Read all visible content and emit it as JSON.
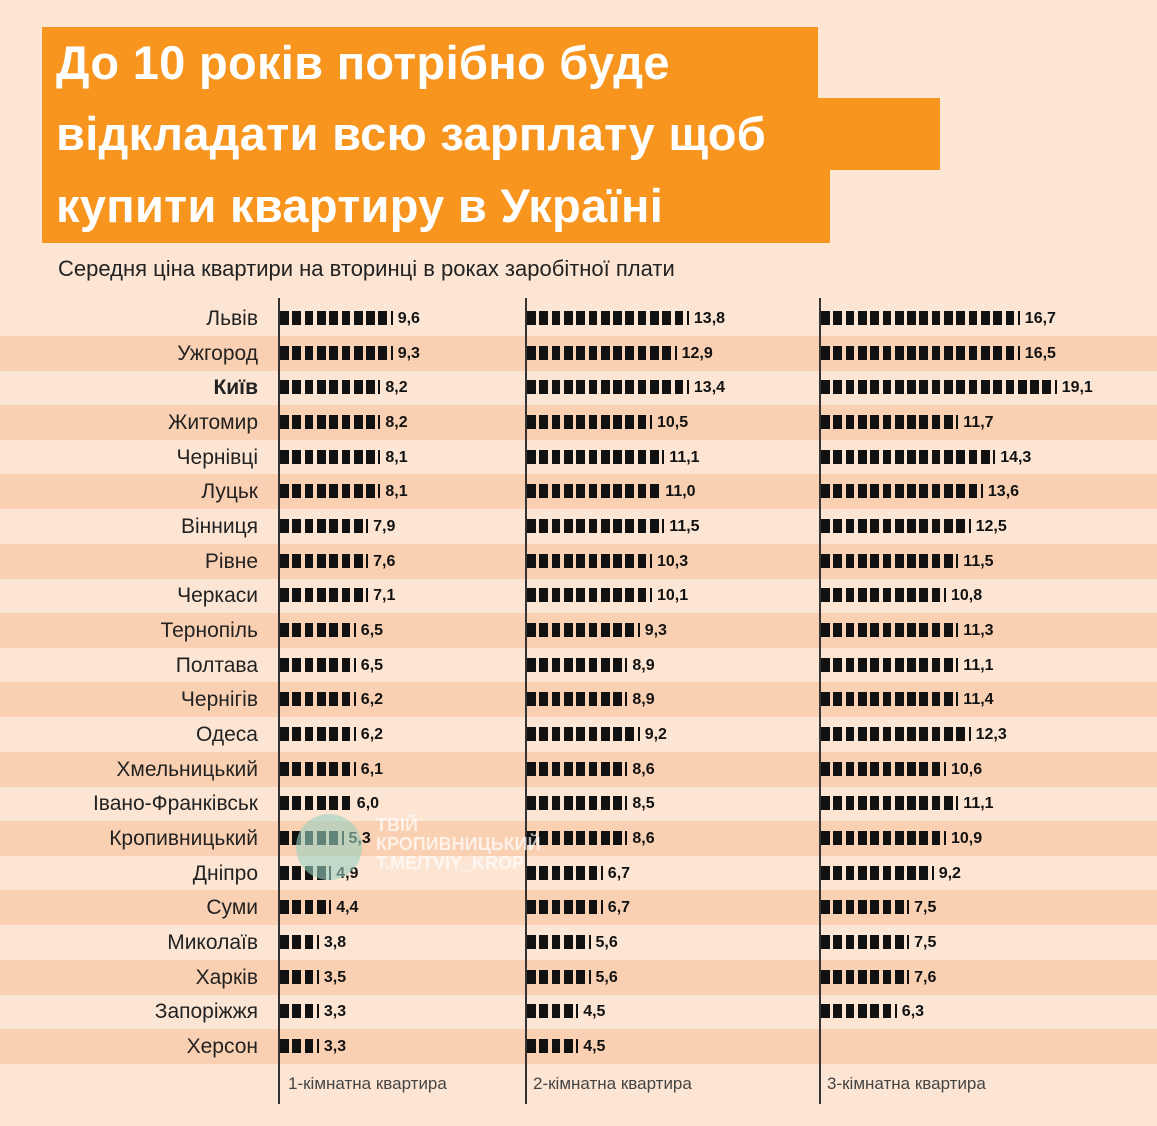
{
  "title_lines": [
    "До 10 років потрібно буде",
    "відкладати всю зарплату щоб",
    "купити квартиру в Україні"
  ],
  "subtitle": "Середня ціна квартири на вторинці в роках заробітної плати",
  "watermark": {
    "lines": [
      "ТВІЙ",
      "КРОПИВНИЦЬКИЙ",
      "T.ME/TVIY_KROP"
    ]
  },
  "colors": {
    "title_bg": "#f7951f",
    "bars": "#111111",
    "background": "#fde5d3",
    "stripe": "#fad0b2"
  },
  "chart_data": {
    "type": "bar",
    "orientation": "horizontal",
    "title": "До 10 років потрібно буде відкладати всю зарплату щоб купити квартиру в Україні",
    "subtitle": "Середня ціна квартири на вторинці в роках заробітної плати",
    "categories": [
      "Львів",
      "Ужгород",
      "Київ",
      "Житомир",
      "Чернівці",
      "Луцьк",
      "Вінниця",
      "Рівне",
      "Черкаси",
      "Тернопіль",
      "Полтава",
      "Чернігів",
      "Одеса",
      "Хмельницький",
      "Івано-Франківськ",
      "Кропивницький",
      "Дніпро",
      "Суми",
      "Миколаїв",
      "Харків",
      "Запоріжжя",
      "Херсон"
    ],
    "highlighted_category": "Київ",
    "series": [
      {
        "name": "1-кімнатна квартира",
        "values": [
          9.6,
          9.3,
          8.2,
          8.2,
          8.1,
          8.1,
          7.9,
          7.6,
          7.1,
          6.5,
          6.5,
          6.2,
          6.2,
          6.1,
          6.0,
          5.3,
          4.9,
          4.4,
          3.8,
          3.5,
          3.3,
          3.3
        ],
        "labels": [
          "9,6",
          "9,3",
          "8,2",
          "8,2",
          "8,1",
          "8,1",
          "7,9",
          "7,6",
          "7,1",
          "6,5",
          "6,5",
          "6,2",
          "6,2",
          "6,1",
          "6,0",
          "5,3",
          "4,9",
          "4,4",
          "3,8",
          "3,5",
          "3,3",
          "3,3"
        ]
      },
      {
        "name": "2-кімнатна квартира",
        "values": [
          13.8,
          12.9,
          13.4,
          10.5,
          11.1,
          11.0,
          11.5,
          10.3,
          10.1,
          9.3,
          8.9,
          8.9,
          9.2,
          8.6,
          8.5,
          8.6,
          6.7,
          6.7,
          5.6,
          5.6,
          4.5,
          4.5
        ],
        "labels": [
          "13,8",
          "12,9",
          "13,4",
          "10,5",
          "11,1",
          "11,0",
          "11,5",
          "10,3",
          "10,1",
          "9,3",
          "8,9",
          "8,9",
          "9,2",
          "8,6",
          "8,5",
          "8,6",
          "6,7",
          "6,7",
          "5,6",
          "5,6",
          "4,5",
          "4,5"
        ]
      },
      {
        "name": "3-кімнатна квартира",
        "values": [
          16.7,
          16.5,
          19.1,
          11.7,
          14.3,
          13.6,
          12.5,
          11.5,
          10.8,
          11.3,
          11.1,
          11.4,
          12.3,
          10.6,
          11.1,
          10.9,
          9.2,
          7.5,
          7.5,
          7.6,
          6.3,
          null
        ],
        "labels": [
          "16,7",
          "16,5",
          "19,1",
          "11,7",
          "14,3",
          "13,6",
          "12,5",
          "11,5",
          "10,8",
          "11,3",
          "11,1",
          "11,4",
          "12,3",
          "10,6",
          "11,1",
          "10,9",
          "9,2",
          "7,5",
          "7,5",
          "7,6",
          "6,3",
          ""
        ]
      }
    ],
    "unit": "years of salary",
    "grid": false,
    "legend": "bottom"
  }
}
